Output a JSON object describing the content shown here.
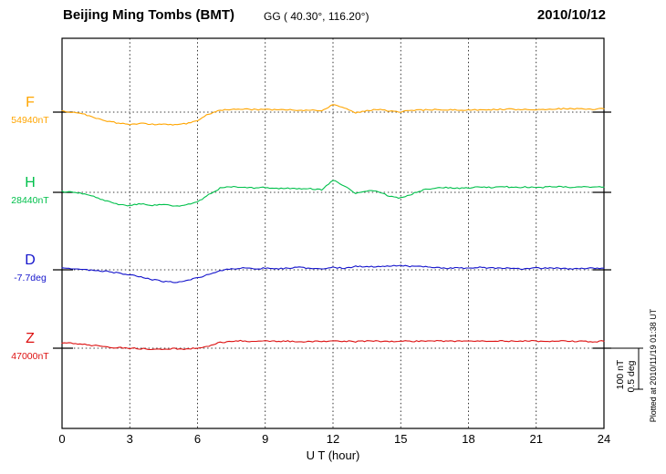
{
  "header": {
    "station": "Beijing Ming Tombs (BMT)",
    "coords": "GG ( 40.30°, 116.20°)",
    "date": "2010/10/12"
  },
  "xaxis": {
    "label": "U T (hour)",
    "ticks": [
      0,
      3,
      6,
      9,
      12,
      15,
      18,
      21,
      24
    ],
    "min": 0,
    "max": 24,
    "grid_hours": [
      3,
      6,
      9,
      12,
      15,
      18,
      21
    ]
  },
  "scalebar": {
    "nt": "100 nT",
    "deg": "0.5 deg"
  },
  "note": "Plotted at 2010/11/19 01:38 UT",
  "chart_data": {
    "type": "line",
    "title": "Beijing Ming Tombs (BMT) magnetogram 2010/10/12",
    "xlabel": "U T (hour)",
    "x_start": 0,
    "x_step": 0.5,
    "x_end": 24,
    "grid": "dotted",
    "scale_reference": {
      "nT": 100,
      "deg": 0.5
    },
    "series": [
      {
        "name": "F",
        "baseline_label": "54940nT",
        "baseline_value": 54940,
        "unit": "nT",
        "color": "#FFA500",
        "offsets": [
          2,
          0,
          -6,
          -14,
          -22,
          -27,
          -30,
          -28,
          -30,
          -29,
          -31,
          -28,
          -20,
          -4,
          4,
          7,
          8,
          6,
          7,
          5,
          6,
          4,
          5,
          3,
          18,
          10,
          -2,
          4,
          6,
          3,
          1,
          4,
          5,
          6,
          6,
          5,
          5,
          6,
          6,
          7,
          7,
          6,
          6,
          7,
          8,
          8,
          8,
          7,
          8
        ]
      },
      {
        "name": "H",
        "baseline_label": "28440nT",
        "baseline_value": 28440,
        "unit": "nT",
        "color": "#00C04B",
        "offsets": [
          2,
          0,
          -4,
          -12,
          -22,
          -30,
          -32,
          -28,
          -32,
          -30,
          -34,
          -30,
          -24,
          -6,
          10,
          14,
          12,
          10,
          12,
          9,
          10,
          8,
          9,
          6,
          30,
          16,
          -2,
          4,
          2,
          -10,
          -14,
          -4,
          6,
          10,
          12,
          10,
          11,
          13,
          12,
          14,
          12,
          13,
          11,
          13,
          14,
          12,
          13,
          12,
          13
        ]
      },
      {
        "name": "D",
        "baseline_label": "-7.7deg",
        "baseline_value": -7.7,
        "unit": "deg",
        "color": "#1414CC",
        "offsets": [
          0.02,
          0.01,
          0,
          -0.01,
          -0.02,
          -0.04,
          -0.06,
          -0.09,
          -0.12,
          -0.14,
          -0.15,
          -0.13,
          -0.1,
          -0.05,
          -0.01,
          0.01,
          0.02,
          0.01,
          0.02,
          0.01,
          0.02,
          0.03,
          0.02,
          0.01,
          0.03,
          0.02,
          0.04,
          0.04,
          0.04,
          0.05,
          0.05,
          0.04,
          0.04,
          0.03,
          0.02,
          0.02,
          0.02,
          0.03,
          0.02,
          0.02,
          0.02,
          0.01,
          0.02,
          0.02,
          0.02,
          0.01,
          0.02,
          0.02,
          0.02
        ]
      },
      {
        "name": "Z",
        "baseline_label": "47000nT",
        "baseline_value": 47000,
        "unit": "nT",
        "color": "#DD1111",
        "offsets": [
          14,
          12,
          9,
          6,
          3,
          1,
          0,
          -1,
          -2,
          -2,
          -1,
          -2,
          0,
          6,
          14,
          17,
          18,
          17,
          18,
          17,
          17,
          16,
          17,
          16,
          18,
          17,
          16,
          17,
          17,
          16,
          18,
          17,
          17,
          18,
          17,
          17,
          18,
          17,
          17,
          18,
          17,
          18,
          17,
          17,
          18,
          17,
          17,
          16,
          17
        ]
      }
    ]
  }
}
